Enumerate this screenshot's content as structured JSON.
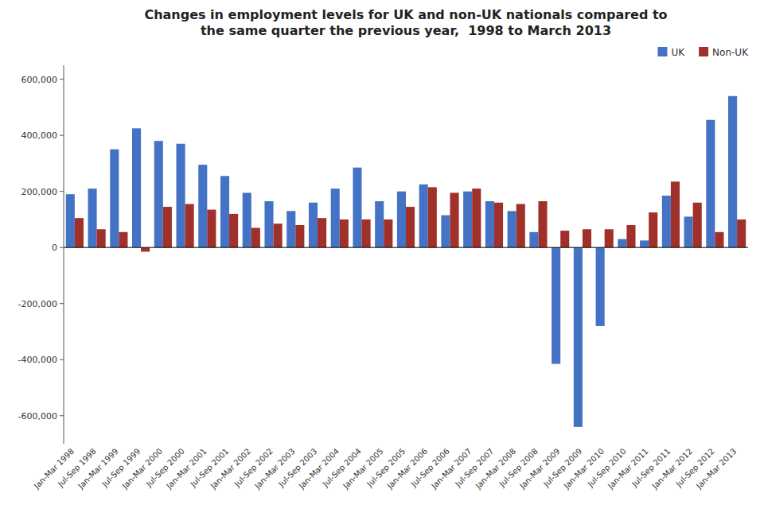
{
  "chart_data": {
    "type": "bar",
    "title": "Changes in employment levels for UK and non-UK nationals compared to\nthe same quarter the previous year,  1998 to March 2013",
    "categories": [
      "Jan-Mar 1998",
      "Jul-Sep 1998",
      "Jan-Mar 1999",
      "Jul-Sep 1999",
      "Jan-Mar 2000",
      "Jul-Sep 2000",
      "Jan-Mar 2001",
      "Jul-Sep 2001",
      "Jan-Mar 2002",
      "Jul-Sep 2002",
      "Jan-Mar 2003",
      "Jul-Sep 2003",
      "Jan-Mar 2004",
      "Jul-Sep 2004",
      "Jan-Mar 2005",
      "Jul-Sep 2005",
      "Jan-Mar 2006",
      "Jul-Sep 2006",
      "Jan-Mar 2007",
      "Jul-Sep 2007",
      "Jan-Mar 2008",
      "Jul-Sep 2008",
      "Jan-Mar 2009",
      "Jul-Sep 2009",
      "Jan-Mar 2010",
      "Jul-Sep 2010",
      "Jan-Mar 2011",
      "Jul-Sep 2011",
      "Jan-Mar 2012",
      "Jul-Sep 2012",
      "Jan-Mar 2013"
    ],
    "series": [
      {
        "name": "UK",
        "color": "#4472C4",
        "values": [
          190000,
          210000,
          350000,
          425000,
          380000,
          370000,
          295000,
          255000,
          195000,
          165000,
          130000,
          160000,
          210000,
          285000,
          165000,
          200000,
          225000,
          115000,
          200000,
          165000,
          130000,
          55000,
          -415000,
          -640000,
          -280000,
          30000,
          25000,
          185000,
          110000,
          455000,
          540000
        ]
      },
      {
        "name": "Non-UK",
        "color": "#A0302A",
        "values": [
          105000,
          65000,
          55000,
          -15000,
          145000,
          155000,
          135000,
          120000,
          70000,
          85000,
          80000,
          105000,
          100000,
          100000,
          100000,
          145000,
          215000,
          195000,
          210000,
          160000,
          155000,
          165000,
          60000,
          65000,
          65000,
          80000,
          125000,
          235000,
          160000,
          55000,
          100000
        ]
      }
    ],
    "ylim": [
      -700000,
      650000
    ],
    "yticks": [
      {
        "value": -600000,
        "label": "-600,000"
      },
      {
        "value": -400000,
        "label": "-400,000"
      },
      {
        "value": -200000,
        "label": "-200,000"
      },
      0,
      {
        "value": 200000,
        "label": "200,000"
      },
      {
        "value": 400000,
        "label": "400,000"
      },
      {
        "value": 600000,
        "label": "600,000"
      }
    ],
    "grid": false,
    "legend": "upper right"
  }
}
